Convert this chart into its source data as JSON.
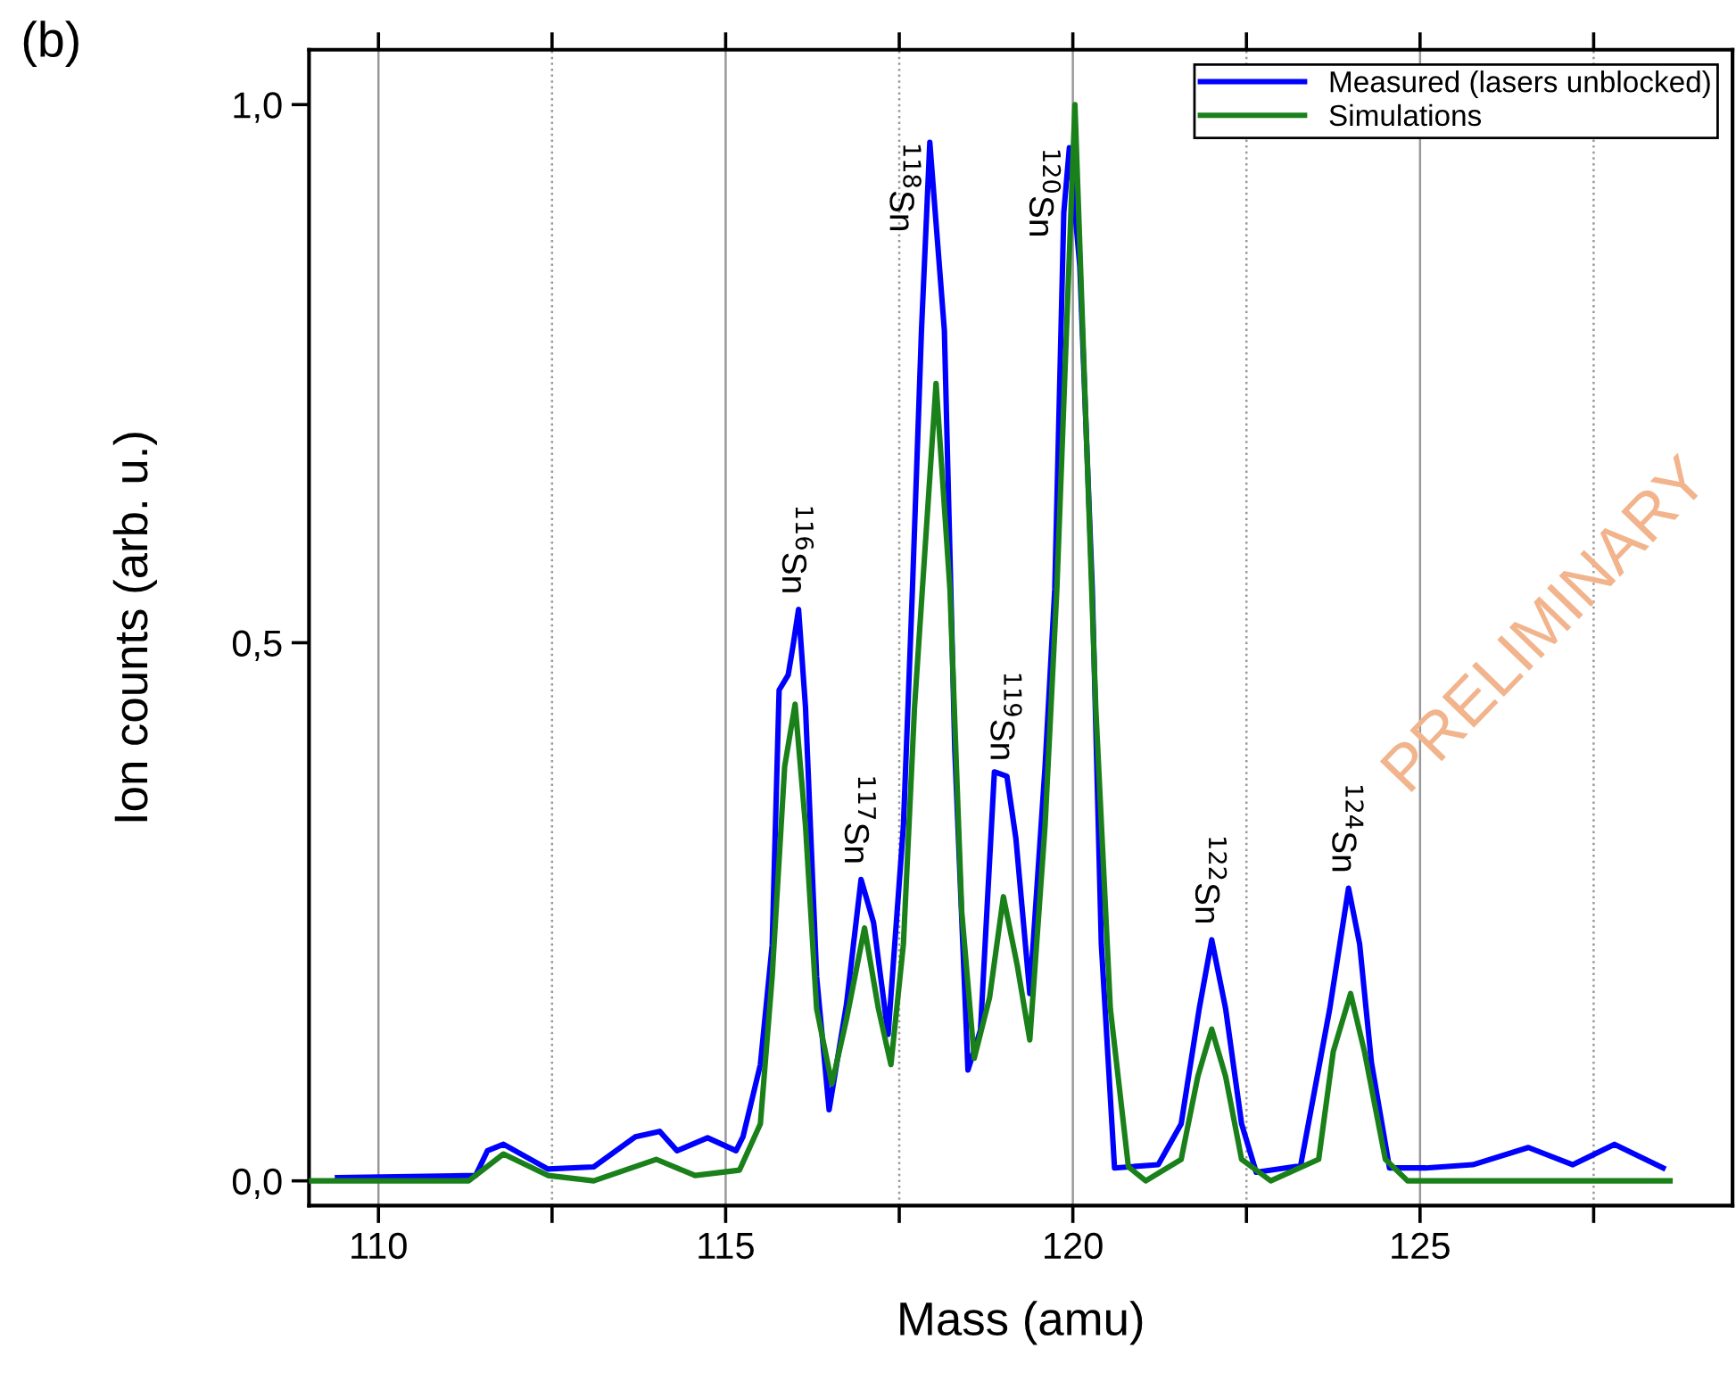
{
  "chart_data": {
    "type": "line",
    "xlabel": "Mass (amu)",
    "ylabel": "Ion counts (arb. u.)",
    "xlim": [
      109.0,
      129.5
    ],
    "ylim": [
      -0.023,
      1.051
    ],
    "xticks": [
      110,
      {
        "value": 112.5,
        "label": null
      },
      115,
      {
        "value": 117.5,
        "label": null
      },
      120,
      {
        "value": 122.5,
        "label": null
      },
      125,
      {
        "value": 127.5,
        "label": null
      }
    ],
    "yticks": [
      {
        "value": 0,
        "label": "0,0"
      },
      {
        "value": 0.5,
        "label": "0,5"
      },
      {
        "value": 1.0,
        "label": "1,0"
      }
    ],
    "grid": "x",
    "legend": "top right",
    "marker": "none",
    "line_style": "solid",
    "series": [
      {
        "name": "Measured (lasers unblocked)",
        "color": "#0000ff",
        "x": [
          109.41,
          111.4,
          111.57,
          111.8,
          112.44,
          113.1,
          113.7,
          114.05,
          114.3,
          114.74,
          115.15,
          115.25,
          115.5,
          115.67,
          115.77,
          115.9,
          115.97,
          116.05,
          116.15,
          116.31,
          116.49,
          116.74,
          116.95,
          117.13,
          117.34,
          117.56,
          117.69,
          117.82,
          117.94,
          118.15,
          118.3,
          118.49,
          118.67,
          118.87,
          119.05,
          119.18,
          119.38,
          119.6,
          119.74,
          119.87,
          119.95,
          120.1,
          120.28,
          120.41,
          120.6,
          121.23,
          121.56,
          121.82,
          122.0,
          122.2,
          122.43,
          122.64,
          123.28,
          123.7,
          123.97,
          124.13,
          124.3,
          124.56,
          125.08,
          125.76,
          126.56,
          127.2,
          127.8,
          128.5
        ],
        "values": [
          0.003,
          0.005,
          0.028,
          0.034,
          0.011,
          0.013,
          0.041,
          0.046,
          0.028,
          0.04,
          0.028,
          0.041,
          0.108,
          0.219,
          0.456,
          0.47,
          0.497,
          0.531,
          0.44,
          0.19,
          0.066,
          0.164,
          0.28,
          0.24,
          0.136,
          0.33,
          0.55,
          0.79,
          0.965,
          0.79,
          0.4,
          0.103,
          0.14,
          0.38,
          0.376,
          0.318,
          0.174,
          0.385,
          0.55,
          0.9,
          0.96,
          0.85,
          0.55,
          0.22,
          0.012,
          0.015,
          0.053,
          0.16,
          0.224,
          0.16,
          0.053,
          0.008,
          0.014,
          0.16,
          0.272,
          0.22,
          0.11,
          0.012,
          0.012,
          0.015,
          0.031,
          0.015,
          0.034,
          0.012
        ]
      },
      {
        "name": "Simulations",
        "color": "#1a801a",
        "x": [
          109.0,
          111.3,
          111.8,
          112.44,
          113.1,
          114.0,
          114.56,
          115.2,
          115.5,
          115.67,
          115.85,
          116.0,
          116.15,
          116.31,
          116.53,
          116.74,
          117.0,
          117.2,
          117.38,
          117.56,
          117.72,
          118.03,
          118.23,
          118.4,
          118.58,
          118.8,
          119.0,
          119.2,
          119.38,
          119.6,
          119.77,
          120.03,
          120.33,
          120.54,
          120.8,
          121.05,
          121.56,
          121.8,
          122.0,
          122.2,
          122.43,
          122.85,
          123.54,
          123.75,
          124.0,
          124.2,
          124.5,
          124.82,
          128.6
        ],
        "values": [
          0.0,
          0.0,
          0.025,
          0.005,
          0.0,
          0.02,
          0.005,
          0.01,
          0.053,
          0.19,
          0.385,
          0.443,
          0.33,
          0.16,
          0.09,
          0.15,
          0.235,
          0.16,
          0.108,
          0.22,
          0.44,
          0.741,
          0.55,
          0.25,
          0.114,
          0.17,
          0.264,
          0.2,
          0.131,
          0.33,
          0.55,
          1.0,
          0.44,
          0.16,
          0.013,
          0.0,
          0.02,
          0.097,
          0.141,
          0.097,
          0.02,
          0.0,
          0.02,
          0.12,
          0.174,
          0.12,
          0.02,
          0.0,
          0.0
        ]
      }
    ],
    "annotations": [
      "(b)",
      "PRELIMINARY",
      {
        "text": "$^{116}$Sn",
        "x": 116.05,
        "y": 0.531
      },
      {
        "text": "$^{117}$Sn",
        "x": 116.95,
        "y": 0.28
      },
      {
        "text": "$^{118}$Sn",
        "x": 117.94,
        "y": 0.965
      },
      {
        "text": "$^{119}$Sn",
        "x": 119.05,
        "y": 0.376
      },
      {
        "text": "$^{120}$Sn",
        "x": 119.95,
        "y": 0.96
      },
      {
        "text": "$^{122}$Sn",
        "x": 122.0,
        "y": 0.224
      },
      {
        "text": "$^{124}$Sn",
        "x": 123.97,
        "y": 0.272
      }
    ]
  }
}
